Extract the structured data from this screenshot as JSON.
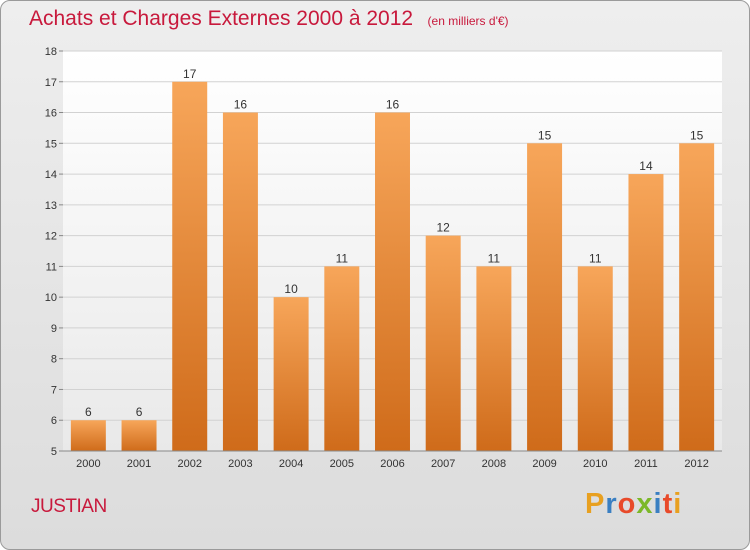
{
  "header": {
    "title": "Achats et Charges Externes 2000 à 2012",
    "unit": "(en milliers d'€)"
  },
  "footer": {
    "commune": "JUSTIAN",
    "brand": {
      "text": "Proxiti",
      "letter_colors": [
        "#e8a020",
        "#3a7fc2",
        "#e84a2a",
        "#7cb829",
        "#3a7fc2",
        "#e84a2a",
        "#e8a020"
      ]
    }
  },
  "chart_data": {
    "type": "bar",
    "categories": [
      "2000",
      "2001",
      "2002",
      "2003",
      "2004",
      "2005",
      "2006",
      "2007",
      "2008",
      "2009",
      "2010",
      "2011",
      "2012"
    ],
    "values": [
      6,
      6,
      17,
      16,
      10,
      11,
      16,
      12,
      11,
      15,
      11,
      14,
      15
    ],
    "data_labels": [
      "6",
      "6",
      "17",
      "16",
      "10",
      "11",
      "16",
      "12",
      "11",
      "15",
      "11",
      "14",
      "15"
    ],
    "yticks": [
      "5",
      "6",
      "7",
      "8",
      "9",
      "10",
      "11",
      "12",
      "13",
      "14",
      "15",
      "16",
      "17",
      "18"
    ],
    "title": "Achats et Charges Externes 2000 à 2012",
    "xlabel": "",
    "ylabel": "",
    "ylim": [
      5,
      18
    ],
    "grid": true,
    "colors": {
      "bar_light": "#f7a65a",
      "bar_dark": "#cf6b1a",
      "plot_bg_top": "#ffffff",
      "plot_bg_bottom": "#e9e9e9",
      "grid": "#d2d2d2"
    }
  }
}
